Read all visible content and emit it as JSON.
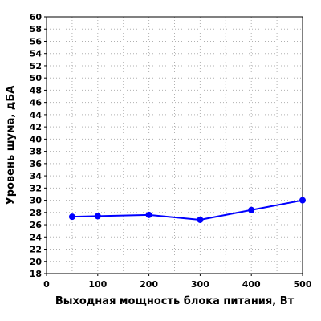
{
  "chart_data": {
    "type": "line",
    "title": "",
    "xlabel": "Выходная мощность блока питания, Вт",
    "ylabel": "Уровень шума, дБА",
    "xlim": [
      0,
      500
    ],
    "ylim": [
      18,
      60
    ],
    "x_ticks": [
      0,
      100,
      200,
      300,
      400,
      500
    ],
    "y_ticks": [
      18,
      20,
      22,
      24,
      26,
      28,
      30,
      32,
      34,
      36,
      38,
      40,
      42,
      44,
      46,
      48,
      50,
      52,
      54,
      56,
      58,
      60
    ],
    "grid": true,
    "legend": "none",
    "series": [
      {
        "color": "#0000ff",
        "x": [
          50,
          100,
          200,
          300,
          400,
          500
        ],
        "y": [
          27.3,
          27.4,
          27.6,
          26.8,
          28.4,
          30.0
        ]
      }
    ]
  }
}
